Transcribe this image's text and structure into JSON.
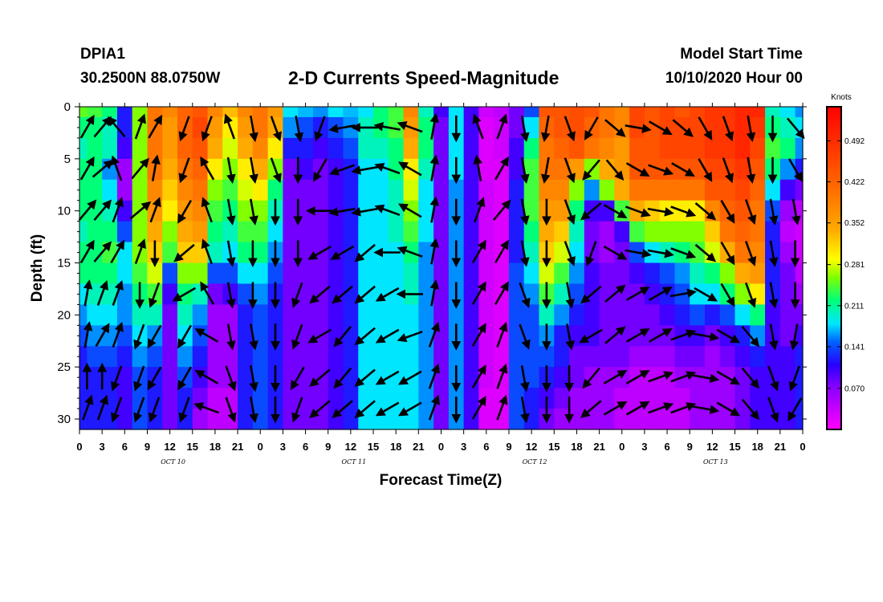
{
  "header": {
    "station": "DPIA1",
    "coordinates": "30.2500N 88.0750W",
    "title": "2-D Currents Speed-Magnitude",
    "model_start_label": "Model Start Time",
    "model_start_value": "10/10/2020 Hour 00"
  },
  "chart_data": {
    "type": "heatmap",
    "title": "2-D Currents Speed-Magnitude",
    "xlabel": "Forecast Time(Z)",
    "ylabel": "Depth (ft)",
    "x_tick_labels": [
      "0",
      "3",
      "6",
      "9",
      "12",
      "15",
      "18",
      "21",
      "0",
      "3",
      "6",
      "9",
      "12",
      "15",
      "18",
      "21",
      "0",
      "3",
      "6",
      "9",
      "12",
      "15",
      "18",
      "21",
      "0",
      "3",
      "6",
      "9",
      "12",
      "15",
      "18",
      "21",
      "0"
    ],
    "x_range_hours": [
      0,
      96
    ],
    "day_labels": [
      {
        "label": "OCT 10",
        "hour": 12
      },
      {
        "label": "OCT 11",
        "hour": 36
      },
      {
        "label": "OCT 12",
        "hour": 60
      },
      {
        "label": "OCT 13",
        "hour": 84
      }
    ],
    "y_ticks": [
      0,
      5,
      10,
      15,
      20,
      25,
      30
    ],
    "y_range_ft": [
      0,
      31
    ],
    "y_inverted": true,
    "colorbar": {
      "unit": "Knots",
      "range": [
        0,
        0.55
      ],
      "ticks": [
        0.07,
        0.141,
        0.211,
        0.281,
        0.352,
        0.422,
        0.492
      ],
      "tick_labels": [
        "0.070",
        "0.141",
        "0.211",
        "0.281",
        "0.352",
        "0.422",
        "0.492"
      ]
    },
    "depths_ft": [
      0,
      2,
      4,
      6,
      8,
      10,
      12,
      14,
      16,
      18,
      20,
      22,
      24,
      26,
      28,
      30
    ],
    "hours": [
      0,
      2,
      4,
      6,
      8,
      10,
      12,
      14,
      16,
      18,
      20,
      22,
      24,
      26,
      28,
      30,
      32,
      34,
      36,
      38,
      40,
      42,
      44,
      46,
      48,
      50,
      52,
      54,
      56,
      58,
      60,
      62,
      64,
      66,
      68,
      70,
      72,
      74,
      76,
      78,
      80,
      82,
      84,
      86,
      88,
      90,
      92,
      94,
      96
    ],
    "speed_knots_rows": [
      [
        0.25,
        0.24,
        0.22,
        0.12,
        0.26,
        0.4,
        0.38,
        0.42,
        0.44,
        0.38,
        0.33,
        0.38,
        0.4,
        0.36,
        0.18,
        0.17,
        0.16,
        0.18,
        0.17,
        0.18,
        0.22,
        0.24,
        0.38,
        0.2,
        0.1,
        0.18,
        0.1,
        0.03,
        0.04,
        0.08,
        0.14,
        0.44,
        0.44,
        0.45,
        0.44,
        0.4,
        0.38,
        0.46,
        0.44,
        0.46,
        0.44,
        0.46,
        0.48,
        0.48,
        0.5,
        0.5,
        0.2,
        0.18,
        0.16
      ],
      [
        0.22,
        0.22,
        0.2,
        0.12,
        0.26,
        0.4,
        0.36,
        0.42,
        0.46,
        0.36,
        0.3,
        0.36,
        0.4,
        0.34,
        0.16,
        0.14,
        0.12,
        0.14,
        0.16,
        0.2,
        0.22,
        0.24,
        0.36,
        0.22,
        0.08,
        0.18,
        0.1,
        0.02,
        0.03,
        0.08,
        0.18,
        0.42,
        0.44,
        0.45,
        0.42,
        0.4,
        0.38,
        0.46,
        0.44,
        0.46,
        0.46,
        0.46,
        0.48,
        0.48,
        0.5,
        0.48,
        0.22,
        0.2,
        0.18
      ],
      [
        0.2,
        0.22,
        0.2,
        0.1,
        0.26,
        0.4,
        0.36,
        0.42,
        0.44,
        0.34,
        0.28,
        0.34,
        0.38,
        0.3,
        0.12,
        0.12,
        0.1,
        0.12,
        0.14,
        0.2,
        0.2,
        0.22,
        0.34,
        0.22,
        0.08,
        0.18,
        0.1,
        0.02,
        0.03,
        0.1,
        0.22,
        0.4,
        0.42,
        0.44,
        0.4,
        0.38,
        0.36,
        0.44,
        0.44,
        0.46,
        0.46,
        0.46,
        0.48,
        0.48,
        0.5,
        0.46,
        0.24,
        0.22,
        0.16
      ],
      [
        0.22,
        0.22,
        0.16,
        0.06,
        0.26,
        0.4,
        0.34,
        0.4,
        0.42,
        0.3,
        0.26,
        0.3,
        0.34,
        0.26,
        0.08,
        0.1,
        0.08,
        0.1,
        0.12,
        0.18,
        0.18,
        0.22,
        0.3,
        0.2,
        0.08,
        0.18,
        0.1,
        0.02,
        0.02,
        0.1,
        0.24,
        0.4,
        0.4,
        0.36,
        0.26,
        0.34,
        0.36,
        0.44,
        0.44,
        0.44,
        0.44,
        0.44,
        0.46,
        0.46,
        0.48,
        0.44,
        0.22,
        0.16,
        0.12
      ],
      [
        0.22,
        0.22,
        0.18,
        0.06,
        0.26,
        0.38,
        0.32,
        0.38,
        0.4,
        0.26,
        0.24,
        0.28,
        0.3,
        0.22,
        0.08,
        0.08,
        0.08,
        0.1,
        0.12,
        0.18,
        0.18,
        0.2,
        0.28,
        0.18,
        0.08,
        0.16,
        0.1,
        0.03,
        0.02,
        0.12,
        0.24,
        0.38,
        0.38,
        0.26,
        0.16,
        0.26,
        0.34,
        0.4,
        0.4,
        0.4,
        0.4,
        0.4,
        0.44,
        0.44,
        0.46,
        0.42,
        0.18,
        0.1,
        0.08
      ],
      [
        0.22,
        0.22,
        0.2,
        0.1,
        0.26,
        0.36,
        0.3,
        0.36,
        0.38,
        0.24,
        0.22,
        0.26,
        0.26,
        0.2,
        0.08,
        0.08,
        0.08,
        0.1,
        0.12,
        0.18,
        0.18,
        0.2,
        0.26,
        0.18,
        0.08,
        0.16,
        0.1,
        0.03,
        0.02,
        0.12,
        0.24,
        0.36,
        0.36,
        0.22,
        0.1,
        0.1,
        0.24,
        0.34,
        0.32,
        0.3,
        0.3,
        0.3,
        0.38,
        0.42,
        0.44,
        0.4,
        0.14,
        0.06,
        0.04
      ],
      [
        0.2,
        0.22,
        0.22,
        0.14,
        0.26,
        0.34,
        0.26,
        0.34,
        0.36,
        0.22,
        0.2,
        0.24,
        0.24,
        0.18,
        0.08,
        0.08,
        0.08,
        0.1,
        0.12,
        0.18,
        0.18,
        0.2,
        0.24,
        0.18,
        0.08,
        0.16,
        0.1,
        0.03,
        0.02,
        0.12,
        0.22,
        0.34,
        0.32,
        0.2,
        0.08,
        0.06,
        0.1,
        0.24,
        0.26,
        0.26,
        0.26,
        0.26,
        0.32,
        0.4,
        0.42,
        0.4,
        0.12,
        0.04,
        0.03
      ],
      [
        0.22,
        0.22,
        0.24,
        0.18,
        0.26,
        0.32,
        0.24,
        0.32,
        0.32,
        0.2,
        0.18,
        0.22,
        0.22,
        0.16,
        0.08,
        0.08,
        0.08,
        0.1,
        0.12,
        0.18,
        0.18,
        0.18,
        0.22,
        0.16,
        0.08,
        0.16,
        0.1,
        0.03,
        0.02,
        0.12,
        0.2,
        0.32,
        0.28,
        0.18,
        0.08,
        0.06,
        0.08,
        0.14,
        0.18,
        0.2,
        0.22,
        0.24,
        0.28,
        0.34,
        0.4,
        0.38,
        0.12,
        0.06,
        0.03
      ],
      [
        0.22,
        0.22,
        0.22,
        0.18,
        0.24,
        0.28,
        0.14,
        0.26,
        0.26,
        0.14,
        0.14,
        0.18,
        0.18,
        0.14,
        0.08,
        0.08,
        0.08,
        0.1,
        0.12,
        0.18,
        0.18,
        0.18,
        0.2,
        0.16,
        0.08,
        0.16,
        0.1,
        0.03,
        0.02,
        0.14,
        0.18,
        0.28,
        0.24,
        0.16,
        0.1,
        0.08,
        0.08,
        0.1,
        0.12,
        0.14,
        0.16,
        0.2,
        0.22,
        0.26,
        0.34,
        0.36,
        0.12,
        0.08,
        0.04
      ],
      [
        0.18,
        0.2,
        0.2,
        0.16,
        0.22,
        0.24,
        0.1,
        0.22,
        0.2,
        0.08,
        0.1,
        0.14,
        0.16,
        0.12,
        0.08,
        0.08,
        0.08,
        0.1,
        0.12,
        0.18,
        0.18,
        0.18,
        0.2,
        0.16,
        0.08,
        0.16,
        0.1,
        0.03,
        0.02,
        0.14,
        0.16,
        0.24,
        0.2,
        0.14,
        0.1,
        0.08,
        0.08,
        0.08,
        0.1,
        0.12,
        0.14,
        0.18,
        0.18,
        0.22,
        0.26,
        0.3,
        0.12,
        0.08,
        0.06
      ],
      [
        0.16,
        0.18,
        0.18,
        0.16,
        0.2,
        0.2,
        0.08,
        0.2,
        0.16,
        0.06,
        0.06,
        0.12,
        0.14,
        0.12,
        0.08,
        0.08,
        0.08,
        0.1,
        0.12,
        0.18,
        0.18,
        0.18,
        0.18,
        0.16,
        0.08,
        0.16,
        0.1,
        0.03,
        0.02,
        0.14,
        0.14,
        0.2,
        0.16,
        0.12,
        0.1,
        0.08,
        0.08,
        0.08,
        0.08,
        0.1,
        0.12,
        0.14,
        0.12,
        0.14,
        0.18,
        0.22,
        0.1,
        0.08,
        0.08
      ],
      [
        0.14,
        0.16,
        0.16,
        0.14,
        0.18,
        0.16,
        0.08,
        0.18,
        0.14,
        0.06,
        0.06,
        0.12,
        0.14,
        0.12,
        0.08,
        0.08,
        0.08,
        0.1,
        0.12,
        0.18,
        0.18,
        0.18,
        0.18,
        0.16,
        0.08,
        0.16,
        0.1,
        0.03,
        0.02,
        0.14,
        0.14,
        0.16,
        0.12,
        0.1,
        0.1,
        0.08,
        0.08,
        0.08,
        0.08,
        0.08,
        0.1,
        0.1,
        0.08,
        0.1,
        0.12,
        0.16,
        0.1,
        0.08,
        0.1
      ],
      [
        0.12,
        0.14,
        0.14,
        0.12,
        0.16,
        0.14,
        0.08,
        0.16,
        0.12,
        0.06,
        0.06,
        0.12,
        0.14,
        0.12,
        0.08,
        0.08,
        0.08,
        0.1,
        0.12,
        0.18,
        0.18,
        0.18,
        0.18,
        0.16,
        0.08,
        0.16,
        0.1,
        0.03,
        0.02,
        0.14,
        0.14,
        0.14,
        0.12,
        0.08,
        0.08,
        0.08,
        0.08,
        0.06,
        0.06,
        0.06,
        0.08,
        0.08,
        0.06,
        0.08,
        0.1,
        0.12,
        0.1,
        0.1,
        0.12
      ],
      [
        0.12,
        0.12,
        0.12,
        0.1,
        0.14,
        0.12,
        0.08,
        0.14,
        0.1,
        0.06,
        0.06,
        0.12,
        0.14,
        0.12,
        0.08,
        0.08,
        0.08,
        0.1,
        0.12,
        0.18,
        0.18,
        0.18,
        0.18,
        0.16,
        0.08,
        0.16,
        0.1,
        0.03,
        0.02,
        0.14,
        0.14,
        0.12,
        0.1,
        0.08,
        0.06,
        0.06,
        0.06,
        0.04,
        0.04,
        0.04,
        0.06,
        0.06,
        0.06,
        0.06,
        0.08,
        0.1,
        0.1,
        0.1,
        0.12
      ],
      [
        0.12,
        0.12,
        0.12,
        0.1,
        0.14,
        0.12,
        0.08,
        0.12,
        0.08,
        0.04,
        0.04,
        0.12,
        0.14,
        0.12,
        0.08,
        0.08,
        0.08,
        0.1,
        0.12,
        0.18,
        0.18,
        0.18,
        0.18,
        0.16,
        0.08,
        0.16,
        0.1,
        0.02,
        0.02,
        0.14,
        0.12,
        0.1,
        0.08,
        0.06,
        0.06,
        0.06,
        0.04,
        0.04,
        0.04,
        0.04,
        0.04,
        0.06,
        0.06,
        0.06,
        0.08,
        0.1,
        0.1,
        0.1,
        0.12
      ],
      [
        0.12,
        0.12,
        0.12,
        0.1,
        0.14,
        0.12,
        0.08,
        0.12,
        0.06,
        0.04,
        0.04,
        0.12,
        0.14,
        0.12,
        0.08,
        0.08,
        0.08,
        0.1,
        0.12,
        0.18,
        0.18,
        0.18,
        0.18,
        0.16,
        0.08,
        0.16,
        0.1,
        0.02,
        0.02,
        0.14,
        0.12,
        0.08,
        0.06,
        0.06,
        0.06,
        0.06,
        0.04,
        0.04,
        0.04,
        0.04,
        0.04,
        0.06,
        0.06,
        0.06,
        0.08,
        0.1,
        0.1,
        0.1,
        0.12
      ]
    ],
    "arrow_columns_hour": [
      1,
      3,
      5,
      8,
      10,
      14,
      17,
      20,
      23,
      26,
      29,
      32,
      35,
      38,
      41,
      44,
      47,
      50,
      53,
      56,
      59,
      62,
      65,
      68,
      71,
      74,
      77,
      80,
      83,
      86,
      89,
      92,
      95
    ],
    "arrow_rows_ft": [
      2,
      6,
      10,
      14,
      18,
      22,
      26,
      29
    ],
    "arrow_direction_deg_rows": [
      [
        30,
        40,
        320,
        20,
        30,
        200,
        200,
        340,
        170,
        160,
        170,
        200,
        260,
        270,
        280,
        290,
        10,
        180,
        340,
        20,
        170,
        190,
        160,
        210,
        130,
        100,
        120,
        130,
        150,
        160,
        170,
        180,
        140
      ],
      [
        30,
        50,
        340,
        40,
        10,
        200,
        330,
        170,
        170,
        160,
        180,
        210,
        250,
        260,
        290,
        300,
        10,
        180,
        350,
        30,
        170,
        190,
        160,
        220,
        140,
        120,
        110,
        120,
        150,
        160,
        170,
        180,
        150
      ],
      [
        40,
        40,
        20,
        50,
        20,
        210,
        340,
        170,
        170,
        180,
        180,
        270,
        260,
        260,
        290,
        300,
        10,
        180,
        20,
        40,
        170,
        180,
        160,
        230,
        120,
        110,
        100,
        110,
        130,
        150,
        160,
        170,
        170
      ],
      [
        30,
        40,
        30,
        20,
        180,
        230,
        340,
        170,
        180,
        180,
        180,
        240,
        240,
        230,
        270,
        290,
        10,
        180,
        30,
        30,
        170,
        180,
        160,
        200,
        120,
        100,
        100,
        110,
        130,
        150,
        160,
        170,
        180
      ],
      [
        10,
        20,
        20,
        180,
        200,
        240,
        330,
        170,
        180,
        180,
        200,
        230,
        230,
        230,
        240,
        270,
        10,
        180,
        30,
        30,
        160,
        180,
        170,
        230,
        50,
        60,
        60,
        80,
        120,
        150,
        160,
        170,
        180
      ],
      [
        10,
        30,
        20,
        200,
        210,
        210,
        300,
        170,
        170,
        180,
        200,
        240,
        220,
        230,
        240,
        250,
        20,
        180,
        30,
        20,
        160,
        180,
        170,
        240,
        50,
        60,
        60,
        70,
        100,
        120,
        140,
        170,
        190
      ],
      [
        0,
        0,
        200,
        200,
        210,
        210,
        300,
        160,
        170,
        180,
        210,
        230,
        220,
        230,
        240,
        240,
        20,
        180,
        30,
        20,
        170,
        180,
        180,
        220,
        60,
        60,
        70,
        70,
        100,
        120,
        140,
        160,
        200
      ],
      [
        20,
        20,
        200,
        200,
        200,
        200,
        290,
        160,
        170,
        180,
        200,
        230,
        230,
        230,
        240,
        240,
        20,
        180,
        30,
        20,
        170,
        180,
        180,
        230,
        60,
        60,
        70,
        70,
        100,
        120,
        140,
        160,
        210
      ]
    ]
  }
}
